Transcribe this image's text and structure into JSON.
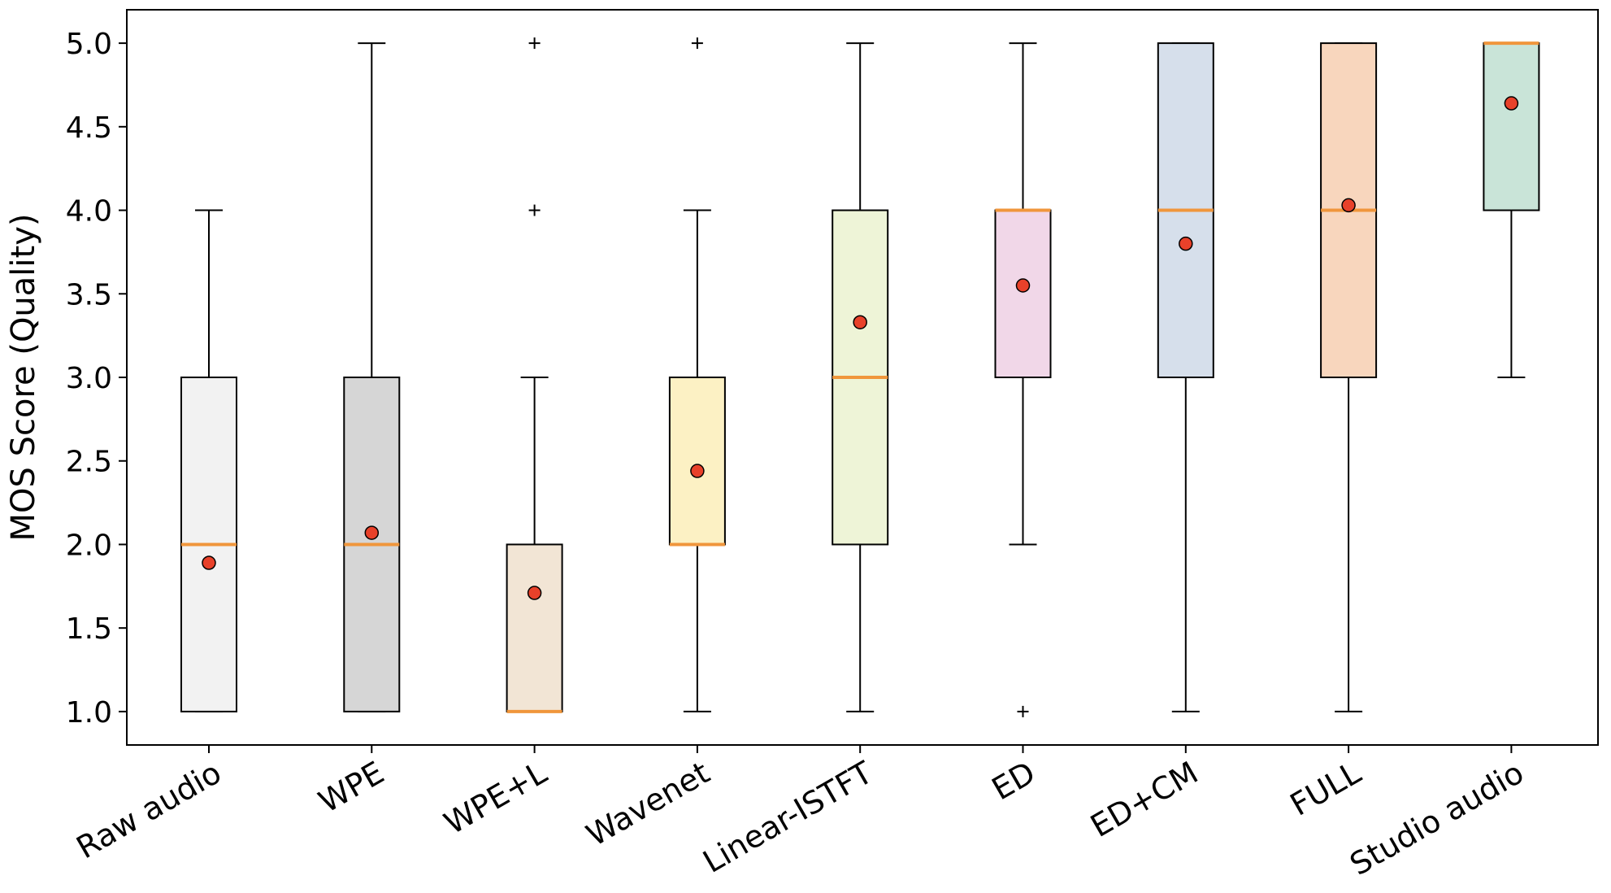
{
  "chart_data": {
    "type": "box",
    "title": "",
    "xlabel": "",
    "ylabel": "MOS Score (Quality)",
    "ylim": [
      0.8,
      5.2
    ],
    "yticks": [
      1.0,
      1.5,
      2.0,
      2.5,
      3.0,
      3.5,
      4.0,
      4.5,
      5.0
    ],
    "ytick_labels": [
      "1.0",
      "1.5",
      "2.0",
      "2.5",
      "3.0",
      "3.5",
      "4.0",
      "4.5",
      "5.0"
    ],
    "categories": [
      "Raw audio",
      "WPE",
      "WPE+L",
      "Wavenet",
      "Linear-ISTFT",
      "ED",
      "ED+CM",
      "FULL",
      "Studio audio"
    ],
    "boxes": [
      {
        "name": "Raw audio",
        "whisker_low": 1.0,
        "q1": 1.0,
        "median": 2.0,
        "q3": 3.0,
        "whisker_high": 4.0,
        "mean": 1.89,
        "outliers": [],
        "color": "#f2f2f2"
      },
      {
        "name": "WPE",
        "whisker_low": 1.0,
        "q1": 1.0,
        "median": 2.0,
        "q3": 3.0,
        "whisker_high": 5.0,
        "mean": 2.07,
        "outliers": [],
        "color": "#d6d6d6"
      },
      {
        "name": "WPE+L",
        "whisker_low": 1.0,
        "q1": 1.0,
        "median": 1.0,
        "q3": 2.0,
        "whisker_high": 3.0,
        "mean": 1.71,
        "outliers": [
          4.0,
          5.0
        ],
        "color": "#f2e5d5"
      },
      {
        "name": "Wavenet",
        "whisker_low": 1.0,
        "q1": 2.0,
        "median": 2.0,
        "q3": 3.0,
        "whisker_high": 4.0,
        "mean": 2.44,
        "outliers": [
          5.0
        ],
        "color": "#fcf1c4"
      },
      {
        "name": "Linear-ISTFT",
        "whisker_low": 1.0,
        "q1": 2.0,
        "median": 3.0,
        "q3": 4.0,
        "whisker_high": 5.0,
        "mean": 3.33,
        "outliers": [],
        "color": "#eef4d7"
      },
      {
        "name": "ED",
        "whisker_low": 2.0,
        "q1": 3.0,
        "median": 4.0,
        "q3": 4.0,
        "whisker_high": 5.0,
        "mean": 3.55,
        "outliers": [
          1.0
        ],
        "color": "#f1d7e8"
      },
      {
        "name": "ED+CM",
        "whisker_low": 1.0,
        "q1": 3.0,
        "median": 4.0,
        "q3": 5.0,
        "whisker_high": 5.0,
        "mean": 3.8,
        "outliers": [],
        "color": "#d6dfeb"
      },
      {
        "name": "FULL",
        "whisker_low": 1.0,
        "q1": 3.0,
        "median": 4.0,
        "q3": 5.0,
        "whisker_high": 5.0,
        "mean": 4.03,
        "outliers": [],
        "color": "#f8d6bd"
      },
      {
        "name": "Studio audio",
        "whisker_low": 3.0,
        "q1": 4.0,
        "median": 5.0,
        "q3": 5.0,
        "whisker_high": 5.0,
        "mean": 4.64,
        "outliers": [],
        "color": "#c9e4d8"
      }
    ],
    "median_color": "#f0963c",
    "mean_marker_color": "#e8412a",
    "grid": false,
    "legend": "none"
  }
}
